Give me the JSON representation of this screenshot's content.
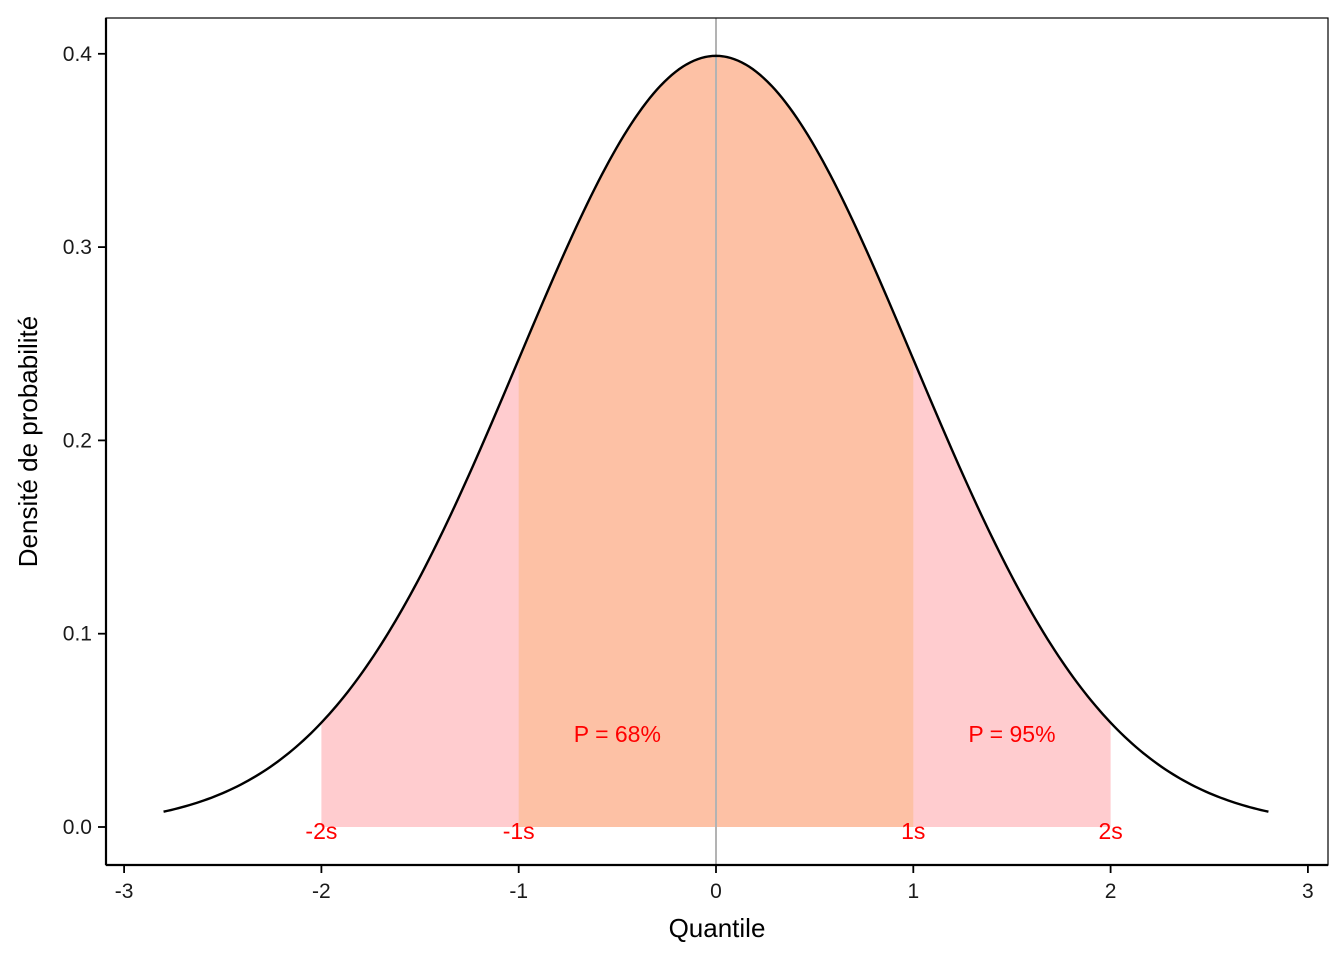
{
  "chart_data": {
    "type": "area",
    "title": "",
    "xlabel": "Quantile",
    "ylabel": "Densité de probabilité",
    "xlim": [
      -3,
      3
    ],
    "ylim": [
      0,
      0.4
    ],
    "x_ticks": [
      -3,
      -2,
      -1,
      0,
      1,
      2,
      3
    ],
    "x_tick_labels": [
      "-3",
      "-2",
      "-1",
      "0",
      "1",
      "2",
      "3"
    ],
    "y_ticks": [
      0.0,
      0.1,
      0.2,
      0.3,
      0.4
    ],
    "y_tick_labels": [
      "0.0",
      "0.1",
      "0.2",
      "0.3",
      "0.4"
    ],
    "grid": false,
    "curve": {
      "distribution": "normal",
      "mean": 0,
      "sd": 1,
      "x_range": [
        -2.8,
        2.8
      ],
      "color": "#000000"
    },
    "shaded_regions": [
      {
        "from": -2,
        "to": 2,
        "color": "#ffcccf"
      },
      {
        "from": -1,
        "to": 1,
        "color": "#fdc1a5"
      }
    ],
    "reference_line": {
      "x": 0,
      "color": "#b3b3b3"
    },
    "annotations": [
      {
        "text": "P = 68%",
        "x": -0.5,
        "y": 0.048,
        "color": "#ff0000"
      },
      {
        "text": "P = 95%",
        "x": 1.5,
        "y": 0.048,
        "color": "#ff0000"
      },
      {
        "text": "-2s",
        "x": -2,
        "y": 0,
        "color": "#ff0000"
      },
      {
        "text": "-1s",
        "x": -1,
        "y": 0,
        "color": "#ff0000"
      },
      {
        "text": "1s",
        "x": 1,
        "y": 0,
        "color": "#ff0000"
      },
      {
        "text": "2s",
        "x": 2,
        "y": 0,
        "color": "#ff0000"
      }
    ]
  }
}
